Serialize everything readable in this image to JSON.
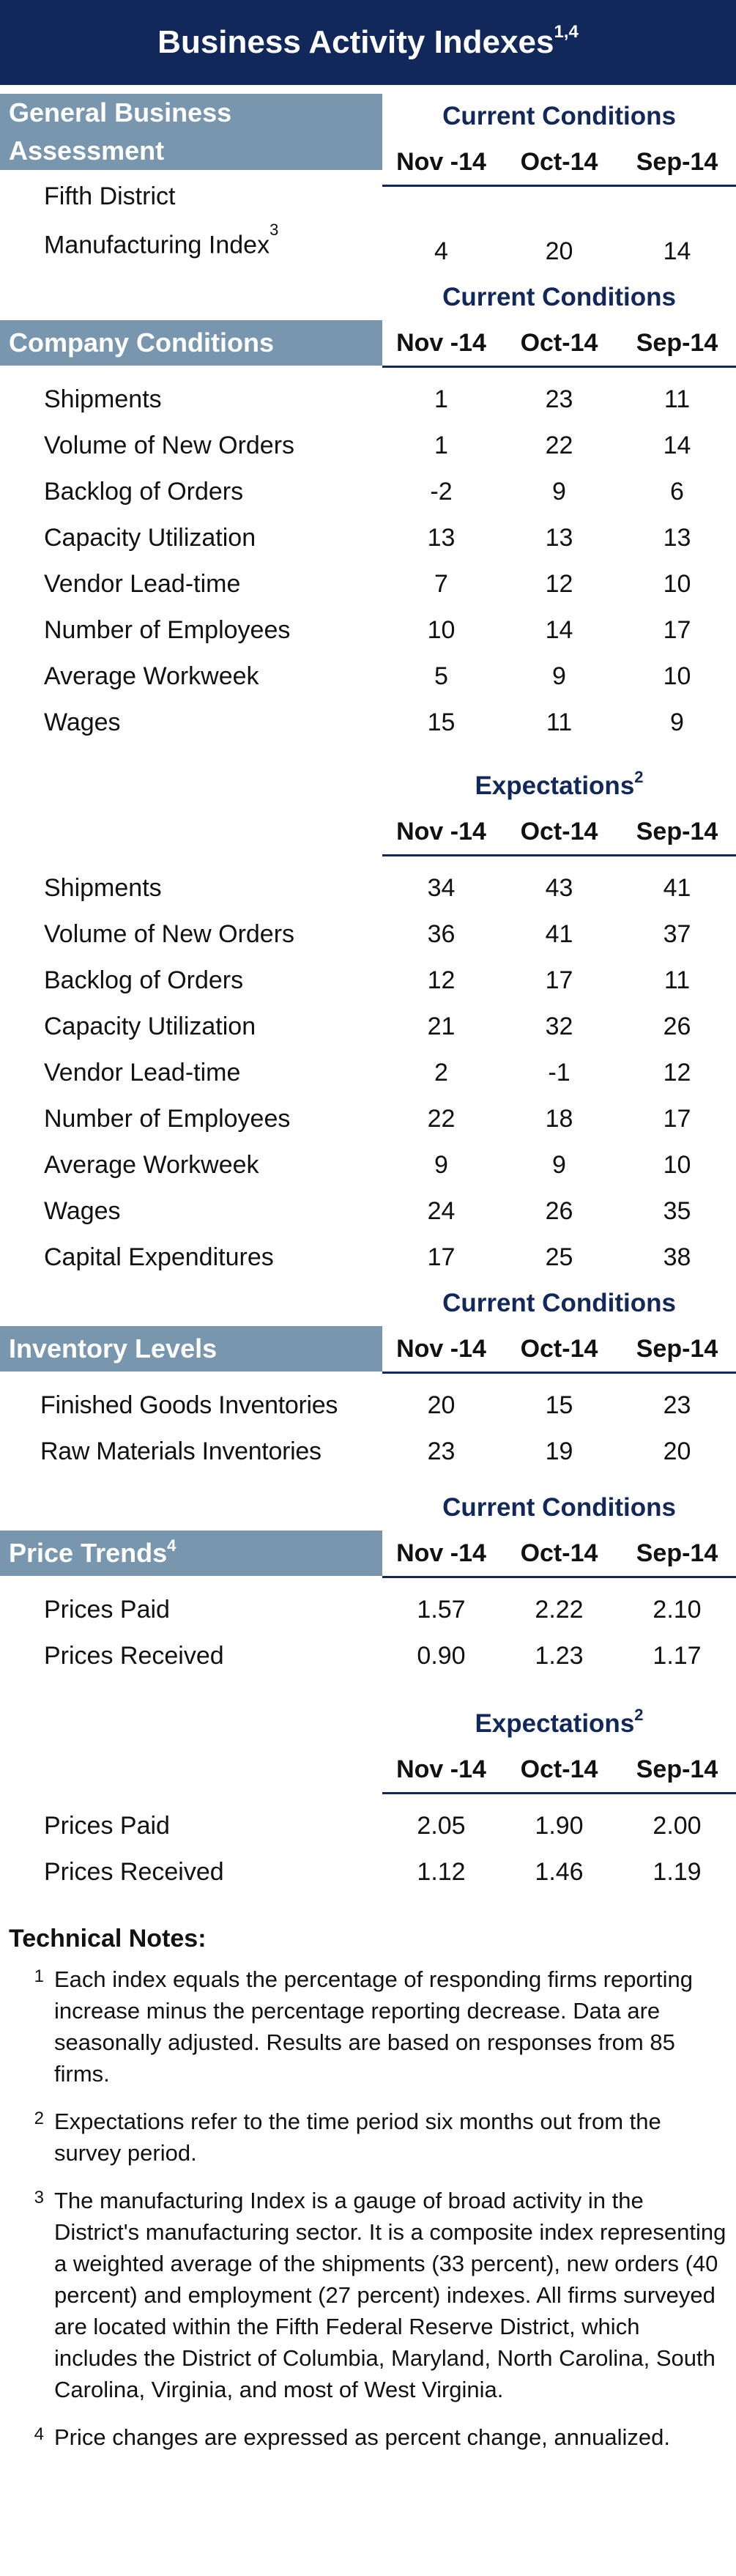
{
  "title": "Business Activity Indexes",
  "title_sup": "1,4",
  "columns": [
    "Nov -14",
    "Oct-14",
    "Sep-14"
  ],
  "current_conditions": "Current Conditions",
  "expectations": "Expectations",
  "expectations_sup": "2",
  "general": {
    "heading": "General Business Assessment",
    "row_label_line1": "Fifth District",
    "row_label_line2": "Manufacturing Index",
    "row_label_sup": "3",
    "values": [
      "4",
      "20",
      "14"
    ]
  },
  "company": {
    "heading": "Company Conditions",
    "current_rows": [
      {
        "label": "Shipments",
        "values": [
          "1",
          "23",
          "11"
        ]
      },
      {
        "label": "Volume of New Orders",
        "values": [
          "1",
          "22",
          "14"
        ]
      },
      {
        "label": "Backlog of Orders",
        "values": [
          "-2",
          "9",
          "6"
        ]
      },
      {
        "label": "Capacity Utilization",
        "values": [
          "13",
          "13",
          "13"
        ]
      },
      {
        "label": "Vendor Lead-time",
        "values": [
          "7",
          "12",
          "10"
        ]
      },
      {
        "label": "Number of Employees",
        "values": [
          "10",
          "14",
          "17"
        ]
      },
      {
        "label": "Average Workweek",
        "values": [
          "5",
          "9",
          "10"
        ]
      },
      {
        "label": "Wages",
        "values": [
          "15",
          "11",
          "9"
        ]
      }
    ],
    "expectation_rows": [
      {
        "label": "Shipments",
        "values": [
          "34",
          "43",
          "41"
        ]
      },
      {
        "label": "Volume of New Orders",
        "values": [
          "36",
          "41",
          "37"
        ]
      },
      {
        "label": "Backlog of Orders",
        "values": [
          "12",
          "17",
          "11"
        ]
      },
      {
        "label": "Capacity Utilization",
        "values": [
          "21",
          "32",
          "26"
        ]
      },
      {
        "label": "Vendor Lead-time",
        "values": [
          "2",
          "-1",
          "12"
        ]
      },
      {
        "label": "Number of Employees",
        "values": [
          "22",
          "18",
          "17"
        ]
      },
      {
        "label": "Average Workweek",
        "values": [
          "9",
          "9",
          "10"
        ]
      },
      {
        "label": "Wages",
        "values": [
          "24",
          "26",
          "35"
        ]
      },
      {
        "label": "Capital Expenditures",
        "values": [
          "17",
          "25",
          "38"
        ]
      }
    ]
  },
  "inventory": {
    "heading": "Inventory Levels",
    "rows": [
      {
        "label": "Finished Goods Inventories",
        "values": [
          "20",
          "15",
          "23"
        ]
      },
      {
        "label": "Raw Materials Inventories",
        "values": [
          "23",
          "19",
          "20"
        ]
      }
    ]
  },
  "price": {
    "heading": "Price Trends",
    "heading_sup": "4",
    "current_rows": [
      {
        "label": "Prices Paid",
        "values": [
          "1.57",
          "2.22",
          "2.10"
        ]
      },
      {
        "label": "Prices Received",
        "values": [
          "0.90",
          "1.23",
          "1.17"
        ]
      }
    ],
    "expectation_rows": [
      {
        "label": "Prices Paid",
        "values": [
          "2.05",
          "1.90",
          "2.00"
        ]
      },
      {
        "label": "Prices Received",
        "values": [
          "1.12",
          "1.46",
          "1.19"
        ]
      }
    ]
  },
  "notes": {
    "title": "Technical Notes:",
    "items": [
      {
        "num": "1",
        "text": "Each index equals the percentage of responding firms reporting increase minus the percentage reporting decrease.  Data are seasonally adjusted.  Results are based on responses from 85 firms."
      },
      {
        "num": "2",
        "text": "Expectations refer to the time period six months out from the survey period."
      },
      {
        "num": "3",
        "text": "The manufacturing Index is a gauge of broad activity in the District's manufacturing sector.  It is a composite index representing a weighted average of the shipments (33 percent), new orders (40 percent) and employment (27 percent) indexes.  All firms surveyed are located within the Fifth Federal Reserve District, which includes the District of Columbia, Maryland, North Carolina, South Carolina, Virginia, and most of West Virginia."
      },
      {
        "num": "4",
        "text": "Price changes are expressed as percent change, annualized."
      }
    ]
  }
}
